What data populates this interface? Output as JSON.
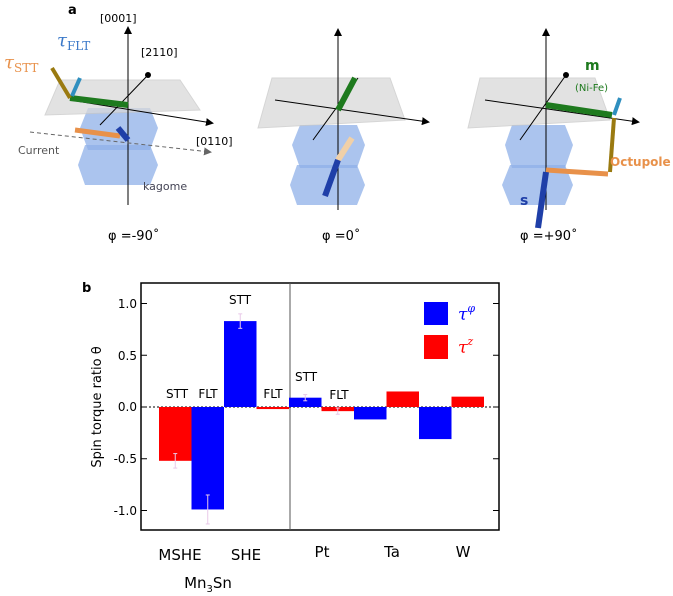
{
  "panel_a": {
    "label": "a",
    "axes": {
      "c_axis": "[0001]",
      "a_axis": "[2110]",
      "b_axis": "[0110]"
    },
    "labels": {
      "tau_stt": "τ",
      "tau_stt_sub": "STT",
      "tau_flt": "τ",
      "tau_flt_sub": "FLT",
      "current": "Current",
      "kagome": "kagome",
      "m": "m",
      "m_sub": "(Ni-Fe)",
      "octupole": "Octupole",
      "s": "s"
    },
    "angles": [
      "φ =-90˚",
      "φ =0˚",
      "φ =+90˚"
    ],
    "colors": {
      "plane": "#d9d9d9",
      "kagome": "#8fb0e8",
      "m": "#1e7a1e",
      "octupole": "#e8914a",
      "s": "#1f3fa8",
      "stt": "#9a7a10",
      "flt": "#2f8fbf"
    }
  },
  "chart_data": {
    "panel_label": "b",
    "type": "bar",
    "ylabel": "Spin torque ratio θ",
    "ylim": [
      -1.2,
      1.2
    ],
    "yticks": [
      1.0,
      0.5,
      0.0,
      -0.5,
      -1.0
    ],
    "ytick_labels": [
      "1.0",
      "0.5",
      "0.0",
      "-0.5",
      "-1.0"
    ],
    "categories": [
      "MSHE",
      "SHE",
      "Pt",
      "Ta",
      "W"
    ],
    "group_label": "Mn₃Sn",
    "group_label_main": "Mn",
    "group_label_sub": "3",
    "group_label_end": "Sn",
    "legend": [
      {
        "name": "τ",
        "sup": "φ",
        "color": "#0000ff"
      },
      {
        "name": "τ",
        "sup": "z",
        "color": "#ff0000"
      }
    ],
    "bars": [
      {
        "category": "MSHE",
        "series": "τz",
        "value": -0.52,
        "error": 0.07,
        "color": "#ff0000"
      },
      {
        "category": "MSHE",
        "series": "τφ",
        "value": -0.99,
        "error": 0.14,
        "color": "#0000ff"
      },
      {
        "category": "SHE",
        "series": "τφ",
        "value": 0.83,
        "error": 0.07,
        "color": "#0000ff"
      },
      {
        "category": "SHE",
        "series": "τz",
        "value": -0.02,
        "error": 0,
        "color": "#ff0000"
      },
      {
        "category": "Pt",
        "series": "τφ",
        "value": 0.09,
        "error": 0.03,
        "color": "#0000ff"
      },
      {
        "category": "Pt",
        "series": "τz",
        "value": -0.04,
        "error": 0.03,
        "color": "#ff0000"
      },
      {
        "category": "Ta",
        "series": "τφ",
        "value": -0.12,
        "error": 0,
        "color": "#0000ff"
      },
      {
        "category": "Ta",
        "series": "τz",
        "value": 0.15,
        "error": 0,
        "color": "#ff0000"
      },
      {
        "category": "W",
        "series": "τφ",
        "value": -0.31,
        "error": 0,
        "color": "#0000ff"
      },
      {
        "category": "W",
        "series": "τz",
        "value": 0.1,
        "error": 0,
        "color": "#ff0000"
      }
    ],
    "annotations": [
      "STT",
      "FLT",
      "STT",
      "FLT",
      "STT",
      "FLT"
    ]
  }
}
